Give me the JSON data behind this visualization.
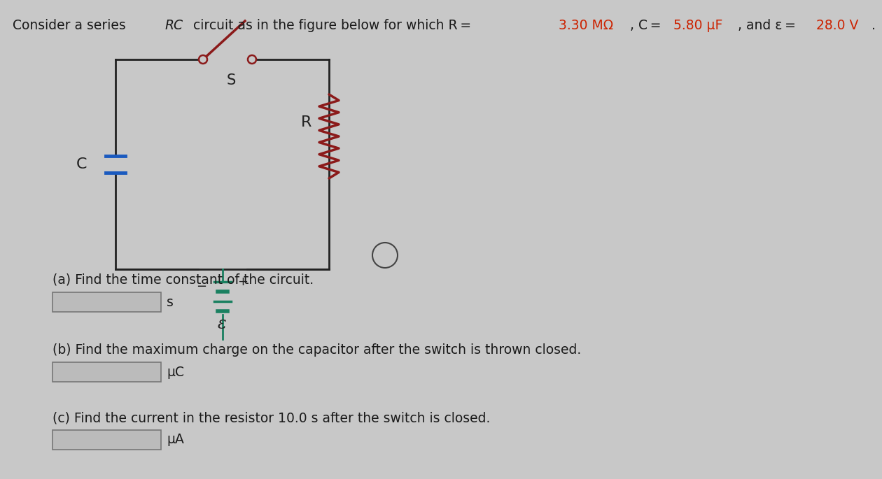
{
  "background_color": "#c8c8c8",
  "text_color": "#1a1a1a",
  "highlight_color": "#cc2200",
  "circuit_color": "#222222",
  "capacitor_color": "#1a5abf",
  "battery_color": "#1a8060",
  "switch_color": "#8B1a1a",
  "resistor_color": "#8B1a1a",
  "info_circle_color": "#444444",
  "title_parts": [
    [
      "Consider a series ",
      "#1a1a1a"
    ],
    [
      "RC",
      "#1a1a1a"
    ],
    [
      " circuit as in the figure below for which R = ",
      "#1a1a1a"
    ],
    [
      "3.30 MΩ",
      "#cc2200"
    ],
    [
      ", C = ",
      "#1a1a1a"
    ],
    [
      "5.80 μF",
      "#cc2200"
    ],
    [
      ", and ε = ",
      "#1a1a1a"
    ],
    [
      "28.0 V",
      "#cc2200"
    ],
    [
      ".",
      "#1a1a1a"
    ]
  ],
  "title_fontsize": 13.5,
  "question_a": "(a) Find the time constant of the circuit.",
  "question_b": "(b) Find the maximum charge on the capacitor after the switch is thrown closed.",
  "question_c": "(c) Find the current in the resistor 10.0 s after the switch is closed.",
  "unit_a": "s",
  "unit_b": "μC",
  "unit_c": "μA"
}
